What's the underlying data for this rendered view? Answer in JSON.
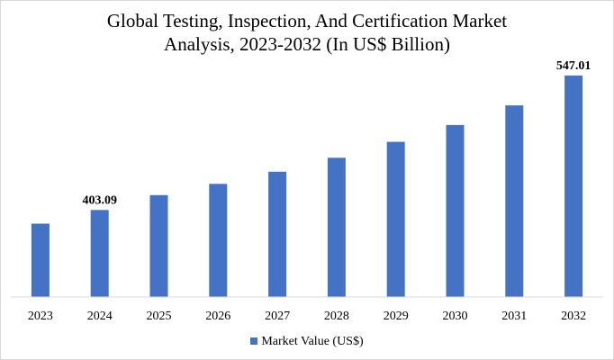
{
  "chart_data": {
    "type": "bar",
    "title": "Global Testing, Inspection, And Certification Market Analysis, 2023-2032 (In US$ Billion)",
    "categories": [
      "2023",
      "2024",
      "2025",
      "2026",
      "2027",
      "2028",
      "2029",
      "2030",
      "2031",
      "2032"
    ],
    "series": [
      {
        "name": "Market Value (US$)",
        "values": [
          388.5,
          403.09,
          419.0,
          431.0,
          444.0,
          459.0,
          476.0,
          494.0,
          515.0,
          547.01
        ]
      }
    ],
    "data_labels": [
      {
        "category": "2024",
        "text": "403.09"
      },
      {
        "category": "2032",
        "text": "547.01"
      }
    ],
    "ylim": [
      310,
      570
    ],
    "xlabel": "",
    "ylabel": "",
    "grid": false,
    "legend_position": "bottom",
    "bar_color": "#4472c4",
    "axis_color": "#d9d9d9"
  }
}
